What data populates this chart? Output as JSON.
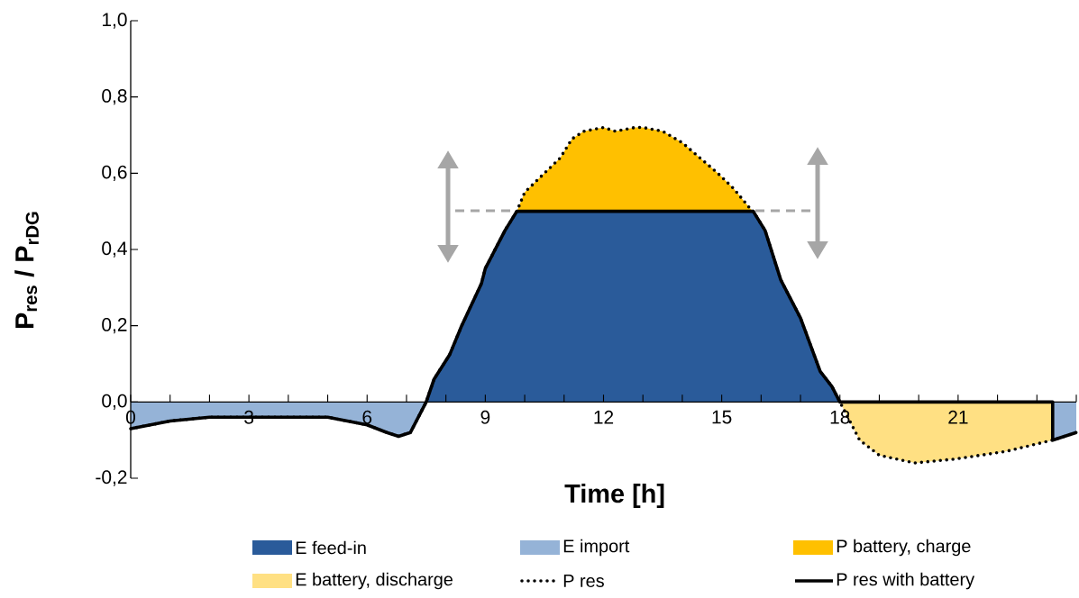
{
  "chart_data": {
    "type": "area",
    "xlabel": "Time [h]",
    "ylabel": "P$_{res}$ / P$_{rDG}$",
    "xlim": [
      0,
      24
    ],
    "ylim": [
      -0.2,
      1.0
    ],
    "xticks": [
      0,
      {
        "value": 1,
        "label": null
      },
      {
        "value": 2,
        "label": null
      },
      3,
      {
        "value": 4,
        "label": null
      },
      {
        "value": 5,
        "label": null
      },
      6,
      {
        "value": 7,
        "label": null
      },
      {
        "value": 8,
        "label": null
      },
      9,
      {
        "value": 10,
        "label": null
      },
      {
        "value": 11,
        "label": null
      },
      12,
      {
        "value": 13,
        "label": null
      },
      {
        "value": 14,
        "label": null
      },
      15,
      {
        "value": 16,
        "label": null
      },
      {
        "value": 17,
        "label": null
      },
      18,
      {
        "value": 19,
        "label": null
      },
      {
        "value": 20,
        "label": null
      },
      21,
      {
        "value": 22,
        "label": null
      },
      {
        "value": 23,
        "label": null
      },
      {
        "value": 24,
        "label": null
      }
    ],
    "yticks": [
      {
        "value": -0.2,
        "label": "-0,2"
      },
      {
        "value": 0,
        "label": "0,0"
      },
      {
        "value": 0.2,
        "label": "0,2"
      },
      {
        "value": 0.4,
        "label": "0,4"
      },
      {
        "value": 0.6,
        "label": "0,6"
      },
      {
        "value": 0.8,
        "label": "0,8"
      },
      {
        "value": 1.0,
        "label": "1,0"
      }
    ],
    "legend": "bottom",
    "series": [
      {
        "name": "E feed-in",
        "color": "#2a5b9a",
        "x": [
          7.5,
          7.7,
          8.1,
          8.4,
          8.9,
          9.0,
          9.2,
          9.5,
          9.8,
          15.8,
          16.1,
          16.5,
          17.0,
          17.5,
          17.8,
          18.0
        ],
        "values": [
          0,
          0.06,
          0.125,
          0.2,
          0.31,
          0.35,
          0.39,
          0.45,
          0.5,
          0.5,
          0.45,
          0.32,
          0.22,
          0.08,
          0.04,
          0
        ]
      },
      {
        "name": "E import",
        "color": "#95b3d7",
        "x": [
          0,
          0.5,
          1,
          2,
          3,
          4,
          5,
          5.5,
          6,
          6.5,
          6.8,
          7.1,
          7.5,
          15,
          23.4,
          24
        ],
        "values": [
          -0.07,
          -0.06,
          -0.05,
          -0.04,
          -0.04,
          -0.04,
          -0.04,
          -0.05,
          -0.06,
          -0.08,
          -0.09,
          -0.08,
          0,
          null,
          -0.1,
          -0.08
        ]
      },
      {
        "name": "P battery, charge",
        "color": "#ffc000",
        "x": [
          9.8,
          10.0,
          10.4,
          10.9,
          11.2,
          11.5,
          12.0,
          12.3,
          12.8,
          13.0,
          13.5,
          14.0,
          14.45,
          14.9,
          15.3,
          15.7,
          15.8
        ],
        "values": [
          0.5,
          0.55,
          0.59,
          0.64,
          0.69,
          0.71,
          0.72,
          0.71,
          0.72,
          0.72,
          0.71,
          0.68,
          0.64,
          0.6,
          0.56,
          0.51,
          0.5
        ]
      },
      {
        "name": "E battery, discharge",
        "color": "#ffe083",
        "x": [
          18.0,
          18.2,
          18.5,
          19.0,
          19.9,
          20.9,
          22.2,
          23.4
        ],
        "values": [
          0,
          -0.04,
          -0.1,
          -0.14,
          -0.16,
          -0.15,
          -0.13,
          -0.1
        ]
      },
      {
        "name": "P res",
        "type": "line",
        "line_style": "dotted",
        "color": "#000000",
        "x": [
          0,
          0.5,
          1,
          2,
          3,
          4,
          5,
          5.5,
          6,
          6.5,
          6.8,
          7.1,
          7.5,
          7.7,
          8.1,
          8.4,
          8.9,
          9.0,
          9.2,
          9.5,
          9.8,
          10.0,
          10.4,
          10.9,
          11.2,
          11.5,
          12.0,
          12.3,
          12.8,
          13.0,
          13.5,
          14.0,
          14.45,
          14.9,
          15.3,
          15.7,
          15.8,
          16.1,
          16.5,
          17.0,
          17.5,
          17.8,
          18.0,
          18.2,
          18.5,
          19.0,
          19.9,
          20.9,
          22.2,
          23.4,
          24
        ],
        "values": [
          -0.07,
          -0.06,
          -0.05,
          -0.04,
          -0.04,
          -0.04,
          -0.04,
          -0.05,
          -0.06,
          -0.08,
          -0.09,
          -0.08,
          0,
          0.06,
          0.125,
          0.2,
          0.31,
          0.35,
          0.39,
          0.45,
          0.5,
          0.55,
          0.59,
          0.64,
          0.69,
          0.71,
          0.72,
          0.71,
          0.72,
          0.72,
          0.71,
          0.68,
          0.64,
          0.6,
          0.56,
          0.51,
          0.5,
          0.45,
          0.32,
          0.22,
          0.08,
          0.04,
          0,
          -0.04,
          -0.1,
          -0.14,
          -0.16,
          -0.15,
          -0.13,
          -0.1,
          -0.08
        ]
      },
      {
        "name": "P res with battery",
        "type": "line",
        "line_style": "solid",
        "color": "#000000",
        "x": [
          0,
          0.5,
          1,
          2,
          3,
          4,
          5,
          5.5,
          6,
          6.5,
          6.8,
          7.1,
          7.5,
          7.7,
          8.1,
          8.4,
          8.9,
          9.0,
          9.2,
          9.5,
          9.8,
          15.8,
          16.1,
          16.5,
          17.0,
          17.5,
          17.8,
          18.0,
          23.4,
          23.4,
          24
        ],
        "values": [
          -0.07,
          -0.06,
          -0.05,
          -0.04,
          -0.04,
          -0.04,
          -0.04,
          -0.05,
          -0.06,
          -0.08,
          -0.09,
          -0.08,
          0,
          0.06,
          0.125,
          0.2,
          0.31,
          0.35,
          0.39,
          0.45,
          0.5,
          0.5,
          0.45,
          0.32,
          0.22,
          0.08,
          0.04,
          0,
          0,
          -0.1,
          -0.08
        ]
      }
    ]
  }
}
